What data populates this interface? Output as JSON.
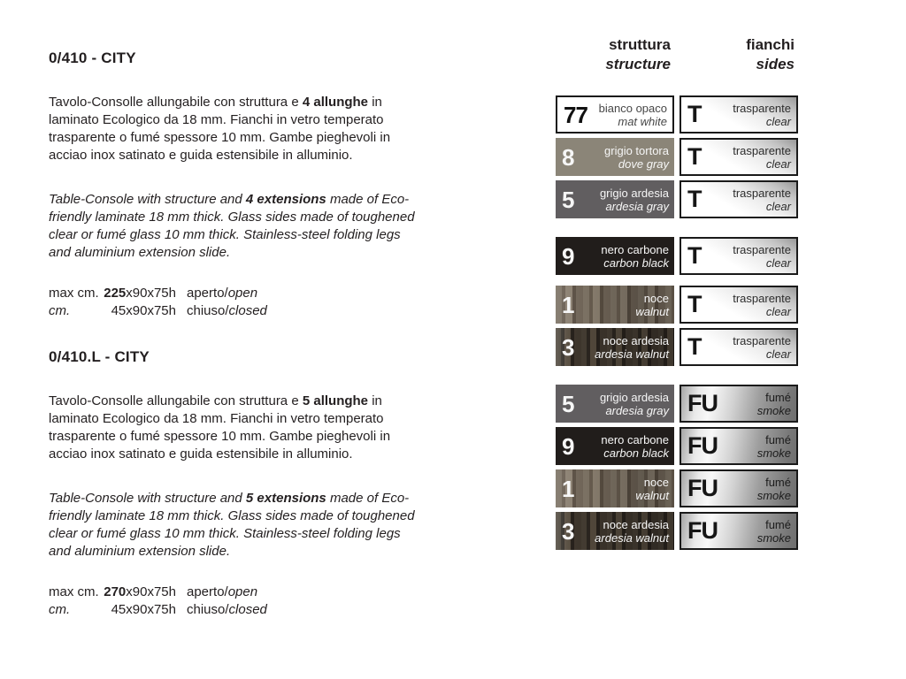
{
  "products": [
    {
      "code": "0/410 - CITY",
      "description_it": {
        "pre": "Tavolo-Consolle allungabile con struttura e ",
        "bold": "4 allunghe",
        "post": " in laminato Ecologico da 18 mm. Fianchi in vetro temperato trasparente o fumé spessore 10 mm. Gambe pieghevoli in acciao inox satinato e guida estensibile in alluminio."
      },
      "description_en": {
        "pre": "Table-Console with structure and ",
        "bold": "4 extensions",
        "post": " made of Eco-friendly laminate 18 mm thick. Glass sides made of toughened clear or fumé glass 10 mm thick. Stainless-steel folding legs and aluminium extension slide."
      },
      "dimensions": {
        "open": {
          "label": "max cm.",
          "size_bold": "225",
          "size_rest": "x90x75h",
          "state": "aperto/",
          "state_lang": "open"
        },
        "closed": {
          "label": "cm.",
          "size": "45x90x75h",
          "state": "chiuso/",
          "state_lang": "closed"
        }
      }
    },
    {
      "code": "0/410.L - CITY",
      "description_it": {
        "pre": "Tavolo-Consolle allungabile con struttura e ",
        "bold": "5 allunghe",
        "post": " in laminato Ecologico da 18 mm. Fianchi in vetro temperato trasparente o fumé spessore 10 mm. Gambe pieghevoli in acciao inox satinato e guida estensibile in alluminio."
      },
      "description_en": {
        "pre": "Table-Console with structure and ",
        "bold": "5 extensions",
        "post": " made of Eco-friendly laminate 18 mm thick. Glass sides made of toughened clear or fumé glass 10 mm thick. Stainless-steel folding legs and aluminium extension slide."
      },
      "dimensions": {
        "open": {
          "label": "max cm.",
          "size_bold": "270",
          "size_rest": "x90x75h",
          "state": "aperto/",
          "state_lang": "open"
        },
        "closed": {
          "label": "cm.",
          "size": "45x90x75h",
          "state": "chiuso/",
          "state_lang": "closed"
        }
      }
    }
  ],
  "finish_columns": {
    "structure": {
      "it": "struttura",
      "en": "structure"
    },
    "sides": {
      "it": "fianchi",
      "en": "sides"
    }
  },
  "palette": {
    "text": "#231f20",
    "swatch_border": "#1a1a1a",
    "mat_white": "#ffffff",
    "dove_gray": "#8b8578",
    "ardesia_gray": "#615e60",
    "carbon_black": "#211d1b",
    "walnut_base": "#75695c",
    "ardesia_walnut_base": "#3a332c"
  },
  "finish_rows": [
    {
      "code": "77",
      "name_it": "bianco opaco",
      "name_en": "mat white",
      "swatch": {
        "hex": "#ffffff",
        "border": true,
        "label": "dark"
      },
      "side": {
        "code": "T",
        "it": "trasparente",
        "en": "clear",
        "style": "clear"
      },
      "gap": "none"
    },
    {
      "code": "8",
      "name_it": "grigio tortora",
      "name_en": "dove gray",
      "swatch": {
        "hex": "#8b8578"
      },
      "side": {
        "code": "T",
        "it": "trasparente",
        "en": "clear",
        "style": "clear"
      },
      "gap": "small"
    },
    {
      "code": "5",
      "name_it": "grigio ardesia",
      "name_en": "ardesia gray",
      "swatch": {
        "hex": "#615e60"
      },
      "side": {
        "code": "T",
        "it": "trasparente",
        "en": "clear",
        "style": "clear"
      },
      "gap": "small"
    },
    {
      "code": "9",
      "name_it": "nero carbone",
      "name_en": "carbon black",
      "swatch": {
        "hex": "#211d1b"
      },
      "side": {
        "code": "T",
        "it": "trasparente",
        "en": "clear",
        "style": "clear"
      },
      "gap": "large"
    },
    {
      "code": "1",
      "name_it": "noce",
      "name_en": "walnut",
      "swatch": {
        "texture": "walnut"
      },
      "side": {
        "code": "T",
        "it": "trasparente",
        "en": "clear",
        "style": "clear"
      },
      "gap": "medium"
    },
    {
      "code": "3",
      "name_it": "noce ardesia",
      "name_en": "ardesia walnut",
      "swatch": {
        "texture": "walnut-dark"
      },
      "side": {
        "code": "T",
        "it": "trasparente",
        "en": "clear",
        "style": "clear"
      },
      "gap": "small"
    },
    {
      "code": "5",
      "name_it": "grigio ardesia",
      "name_en": "ardesia gray",
      "swatch": {
        "hex": "#615e60"
      },
      "side": {
        "code": "FU",
        "it": "fumé",
        "en": "smoke",
        "style": "smoke"
      },
      "gap": "large"
    },
    {
      "code": "9",
      "name_it": "nero carbone",
      "name_en": "carbon black",
      "swatch": {
        "hex": "#211d1b"
      },
      "side": {
        "code": "FU",
        "it": "fumé",
        "en": "smoke",
        "style": "smoke"
      },
      "gap": "small"
    },
    {
      "code": "1",
      "name_it": "noce",
      "name_en": "walnut",
      "swatch": {
        "texture": "walnut"
      },
      "side": {
        "code": "FU",
        "it": "fumé",
        "en": "smoke",
        "style": "smoke"
      },
      "gap": "small"
    },
    {
      "code": "3",
      "name_it": "noce ardesia",
      "name_en": "ardesia walnut",
      "swatch": {
        "texture": "walnut-dark"
      },
      "side": {
        "code": "FU",
        "it": "fumé",
        "en": "smoke",
        "style": "smoke"
      },
      "gap": "small"
    }
  ]
}
